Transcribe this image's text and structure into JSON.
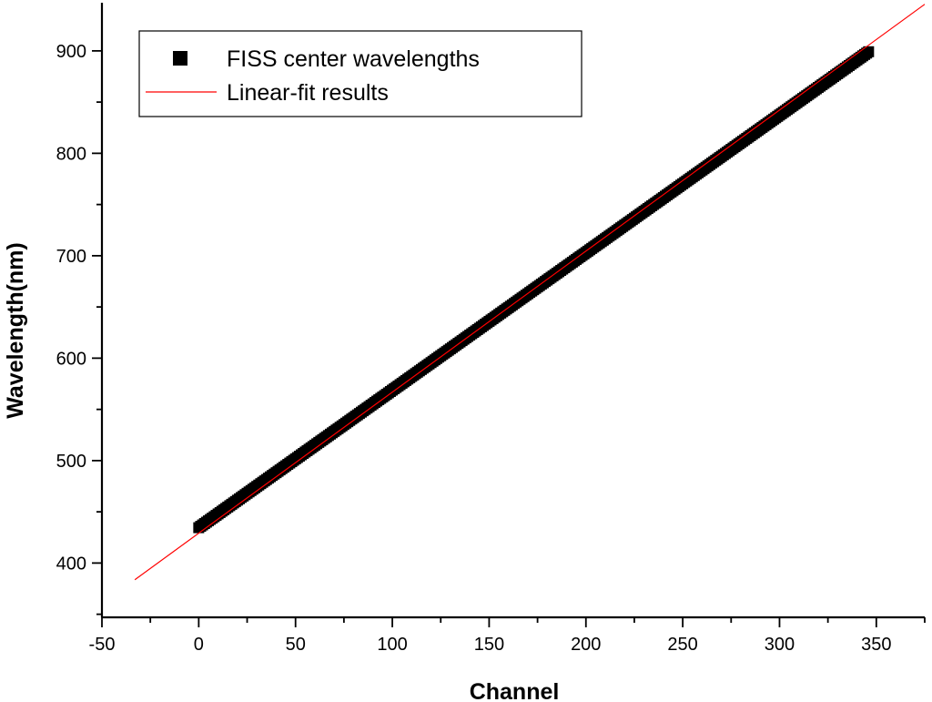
{
  "chart_data": {
    "type": "scatter",
    "title": "",
    "xlabel": "Channel",
    "ylabel": "Wavelength(nm)",
    "xlim": [
      -50,
      375
    ],
    "ylim": [
      347,
      947
    ],
    "x_ticks": [
      -50,
      0,
      50,
      100,
      150,
      200,
      250,
      300,
      350
    ],
    "y_ticks": [
      400,
      500,
      600,
      700,
      800,
      900
    ],
    "x_minor_step": 25,
    "y_minor_step": 50,
    "grid": false,
    "legend_position": "top-left",
    "series": [
      {
        "name": "FISS center wavelengths",
        "kind": "scatter",
        "marker": "square",
        "color": "#000000",
        "x_range": [
          0,
          346
        ],
        "x_step": 1,
        "slope": 1.343,
        "intercept": 434.5
      },
      {
        "name": "Linear-fit results",
        "kind": "line",
        "color": "#ff0000",
        "x": [
          -33,
          375
        ],
        "y": [
          383.7,
          945.5
        ]
      }
    ]
  }
}
